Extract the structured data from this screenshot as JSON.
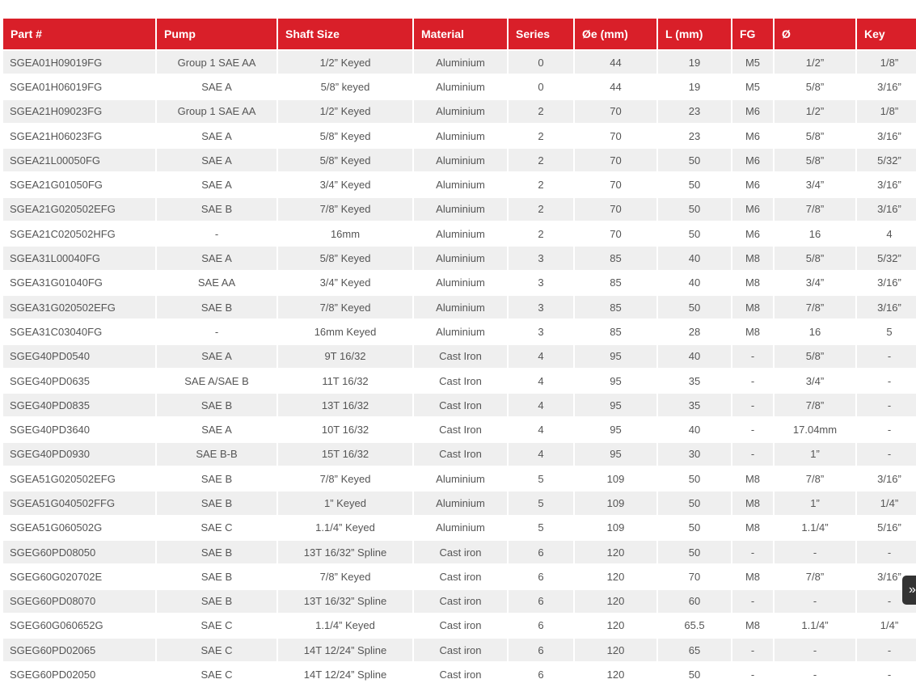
{
  "headers": [
    "Part #",
    "Pump",
    "Shaft Size",
    "Material",
    "Series",
    "Øe (mm)",
    "L (mm)",
    "FG",
    "Ø",
    "Key"
  ],
  "rows": [
    [
      "SGEA01H09019FG",
      "Group 1 SAE AA",
      "1/2” Keyed",
      "Aluminium",
      "0",
      "44",
      "19",
      "M5",
      "1/2”",
      "1/8”"
    ],
    [
      "SGEA01H06019FG",
      "SAE A",
      "5/8” keyed",
      "Aluminium",
      "0",
      "44",
      "19",
      "M5",
      "5/8”",
      "3/16”"
    ],
    [
      "SGEA21H09023FG",
      "Group 1 SAE AA",
      "1/2” Keyed",
      "Aluminium",
      "2",
      "70",
      "23",
      "M6",
      "1/2”",
      "1/8”"
    ],
    [
      "SGEA21H06023FG",
      "SAE A",
      "5/8” Keyed",
      "Aluminium",
      "2",
      "70",
      "23",
      "M6",
      "5/8”",
      "3/16”"
    ],
    [
      "SGEA21L00050FG",
      "SAE A",
      "5/8” Keyed",
      "Aluminium",
      "2",
      "70",
      "50",
      "M6",
      "5/8”",
      "5/32”"
    ],
    [
      "SGEA21G01050FG",
      "SAE A",
      "3/4” Keyed",
      "Aluminium",
      "2",
      "70",
      "50",
      "M6",
      "3/4”",
      "3/16”"
    ],
    [
      "SGEA21G020502EFG",
      "SAE B",
      "7/8” Keyed",
      "Aluminium",
      "2",
      "70",
      "50",
      "M6",
      "7/8”",
      "3/16”"
    ],
    [
      "SGEA21C020502HFG",
      "-",
      "16mm",
      "Aluminium",
      "2",
      "70",
      "50",
      "M6",
      "16",
      "4"
    ],
    [
      "SGEA31L00040FG",
      "SAE A",
      "5/8” Keyed",
      "Aluminium",
      "3",
      "85",
      "40",
      "M8",
      "5/8”",
      "5/32”"
    ],
    [
      "SGEA31G01040FG",
      "SAE AA",
      "3/4” Keyed",
      "Aluminium",
      "3",
      "85",
      "40",
      "M8",
      "3/4”",
      "3/16”"
    ],
    [
      "SGEA31G020502EFG",
      "SAE B",
      "7/8” Keyed",
      "Aluminium",
      "3",
      "85",
      "50",
      "M8",
      "7/8”",
      "3/16”"
    ],
    [
      "SGEA31C03040FG",
      "-",
      "16mm Keyed",
      "Aluminium",
      "3",
      "85",
      "28",
      "M8",
      "16",
      "5"
    ],
    [
      "SGEG40PD0540",
      "SAE A",
      "9T 16/32",
      "Cast Iron",
      "4",
      "95",
      "40",
      "-",
      "5/8”",
      "-"
    ],
    [
      "SGEG40PD0635",
      "SAE A/SAE B",
      "11T 16/32",
      "Cast Iron",
      "4",
      "95",
      "35",
      "-",
      "3/4”",
      "-"
    ],
    [
      "SGEG40PD0835",
      "SAE B",
      "13T 16/32",
      "Cast Iron",
      "4",
      "95",
      "35",
      "-",
      "7/8”",
      "-"
    ],
    [
      "SGEG40PD3640",
      "SAE A",
      "10T 16/32",
      "Cast Iron",
      "4",
      "95",
      "40",
      "-",
      "17.04mm",
      "-"
    ],
    [
      "SGEG40PD0930",
      "SAE B-B",
      "15T 16/32",
      "Cast Iron",
      "4",
      "95",
      "30",
      "-",
      "1”",
      "-"
    ],
    [
      "SGEA51G020502EFG",
      "SAE B",
      "7/8” Keyed",
      "Aluminium",
      "5",
      "109",
      "50",
      "M8",
      "7/8”",
      "3/16”"
    ],
    [
      "SGEA51G040502FFG",
      "SAE B",
      "1” Keyed",
      "Aluminium",
      "5",
      "109",
      "50",
      "M8",
      "1”",
      "1/4”"
    ],
    [
      "SGEA51G060502G",
      "SAE C",
      "1.1/4” Keyed",
      "Aluminium",
      "5",
      "109",
      "50",
      "M8",
      "1.1/4”",
      "5/16”"
    ],
    [
      "SGEG60PD08050",
      "SAE B",
      "13T 16/32” Spline",
      "Cast iron",
      "6",
      "120",
      "50",
      "-",
      "-",
      "-"
    ],
    [
      "SGEG60G020702E",
      "SAE B",
      "7/8” Keyed",
      "Cast iron",
      "6",
      "120",
      "70",
      "M8",
      "7/8”",
      "3/16”"
    ],
    [
      "SGEG60PD08070",
      "SAE B",
      "13T 16/32” Spline",
      "Cast iron",
      "6",
      "120",
      "60",
      "-",
      "-",
      "-"
    ],
    [
      "SGEG60G060652G",
      "SAE C",
      "1.1/4” Keyed",
      "Cast iron",
      "6",
      "120",
      "65.5",
      "M8",
      "1.1/4”",
      "1/4”"
    ],
    [
      "SGEG60PD02065",
      "SAE C",
      "14T 12/24” Spline",
      "Cast iron",
      "6",
      "120",
      "65",
      "-",
      "-",
      "-"
    ],
    [
      "SGEG60PD02050",
      "SAE C",
      "14T 12/24” Spline",
      "Cast iron",
      "6",
      "120",
      "50",
      "-",
      "-",
      "-"
    ]
  ],
  "colors": {
    "header_bg": "#d91f29",
    "stripe": "#efefef"
  },
  "floating_button": {
    "icon": "double-chevron-icon"
  }
}
